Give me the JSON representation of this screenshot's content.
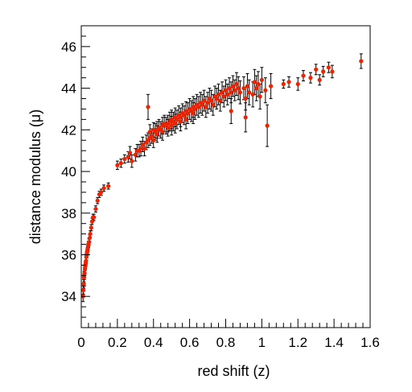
{
  "chart_data": {
    "type": "scatter",
    "title": "",
    "xlabel": "red shift (z)",
    "ylabel": "distance modulus (μ)",
    "xlim": [
      0,
      1.6
    ],
    "ylim": [
      32.5,
      47
    ],
    "xticks": [
      0,
      0.2,
      0.4,
      0.6,
      0.8,
      1,
      1.2,
      1.4,
      1.6
    ],
    "xtick_labels": [
      "0",
      "0.2",
      "0.4",
      "0.6",
      "0.8",
      "1",
      "1.2",
      "1.4",
      "1.6"
    ],
    "yticks": [
      34,
      36,
      38,
      40,
      42,
      44,
      46
    ],
    "ytick_labels": [
      "34",
      "36",
      "38",
      "40",
      "42",
      "44",
      "46"
    ],
    "grid": false,
    "legend": "none",
    "marker_color": "#ee2200",
    "errorbar_color": "#000000",
    "series": [
      {
        "x": [
          0.01,
          0.012,
          0.014,
          0.015,
          0.016,
          0.018,
          0.02,
          0.021,
          0.023,
          0.025,
          0.026,
          0.028,
          0.03,
          0.032,
          0.034,
          0.036,
          0.038,
          0.04,
          0.043,
          0.046,
          0.05,
          0.055,
          0.06,
          0.065,
          0.07,
          0.08,
          0.09,
          0.1,
          0.11,
          0.125,
          0.15,
          0.2,
          0.22,
          0.24,
          0.26,
          0.27,
          0.28,
          0.3,
          0.31,
          0.32,
          0.33,
          0.34,
          0.35,
          0.36,
          0.37,
          0.38,
          0.38,
          0.39,
          0.4,
          0.4,
          0.41,
          0.42,
          0.42,
          0.43,
          0.44,
          0.45,
          0.45,
          0.46,
          0.47,
          0.48,
          0.48,
          0.49,
          0.5,
          0.5,
          0.51,
          0.52,
          0.52,
          0.53,
          0.54,
          0.55,
          0.55,
          0.56,
          0.57,
          0.58,
          0.58,
          0.59,
          0.6,
          0.61,
          0.62,
          0.62,
          0.63,
          0.64,
          0.65,
          0.66,
          0.67,
          0.68,
          0.69,
          0.7,
          0.71,
          0.72,
          0.73,
          0.74,
          0.75,
          0.76,
          0.77,
          0.78,
          0.79,
          0.8,
          0.81,
          0.82,
          0.83,
          0.84,
          0.85,
          0.86,
          0.87,
          0.88,
          0.9,
          0.91,
          0.92,
          0.93,
          0.95,
          0.96,
          0.97,
          0.98,
          0.99,
          1.0,
          1.02,
          1.05,
          1.12,
          1.15,
          1.2,
          1.23,
          1.27,
          1.3,
          1.32,
          1.34,
          1.37,
          1.39,
          1.55,
          0.37,
          0.83,
          0.91,
          1.03
        ],
        "y": [
          34.0,
          34.3,
          34.6,
          34.9,
          35.0,
          35.1,
          35.3,
          35.4,
          35.5,
          35.6,
          35.7,
          35.9,
          36.0,
          36.1,
          36.2,
          36.3,
          36.4,
          36.5,
          36.6,
          36.8,
          37.0,
          37.3,
          37.6,
          37.8,
          37.8,
          38.2,
          38.6,
          38.9,
          39.0,
          39.2,
          39.3,
          40.3,
          40.4,
          40.6,
          40.7,
          40.9,
          40.5,
          40.8,
          41.0,
          41.0,
          41.1,
          41.3,
          41.1,
          41.4,
          41.5,
          41.6,
          41.9,
          41.7,
          41.5,
          42.0,
          41.9,
          42.0,
          41.8,
          42.1,
          42.0,
          42.2,
          41.9,
          42.3,
          42.2,
          42.3,
          42.1,
          42.4,
          42.2,
          42.5,
          42.4,
          42.6,
          42.3,
          42.5,
          42.7,
          42.6,
          42.4,
          42.8,
          42.7,
          42.9,
          42.5,
          42.8,
          43.0,
          42.9,
          43.1,
          42.8,
          43.0,
          43.2,
          43.1,
          43.3,
          43.2,
          43.4,
          43.1,
          43.3,
          43.5,
          43.4,
          43.2,
          43.6,
          43.5,
          43.7,
          43.4,
          43.8,
          43.6,
          43.9,
          43.7,
          44.0,
          43.8,
          44.1,
          43.9,
          44.2,
          44.0,
          43.8,
          44.0,
          43.5,
          44.1,
          43.8,
          43.7,
          44.3,
          44.0,
          44.2,
          43.6,
          44.4,
          43.9,
          44.1,
          44.2,
          44.3,
          44.2,
          44.6,
          44.5,
          44.9,
          44.4,
          44.8,
          45.0,
          44.8,
          45.3,
          43.1,
          42.9,
          42.6,
          42.2
        ],
        "yerr": [
          0.25,
          0.2,
          0.2,
          0.2,
          0.2,
          0.2,
          0.15,
          0.15,
          0.15,
          0.15,
          0.15,
          0.15,
          0.15,
          0.15,
          0.15,
          0.15,
          0.15,
          0.15,
          0.15,
          0.15,
          0.15,
          0.15,
          0.15,
          0.15,
          0.15,
          0.15,
          0.15,
          0.15,
          0.15,
          0.15,
          0.15,
          0.2,
          0.2,
          0.2,
          0.25,
          0.3,
          0.3,
          0.3,
          0.3,
          0.3,
          0.35,
          0.35,
          0.35,
          0.35,
          0.35,
          0.35,
          0.35,
          0.35,
          0.35,
          0.35,
          0.4,
          0.4,
          0.4,
          0.4,
          0.4,
          0.4,
          0.4,
          0.4,
          0.4,
          0.4,
          0.4,
          0.45,
          0.45,
          0.45,
          0.45,
          0.45,
          0.45,
          0.45,
          0.45,
          0.45,
          0.45,
          0.45,
          0.45,
          0.45,
          0.45,
          0.5,
          0.5,
          0.5,
          0.5,
          0.5,
          0.5,
          0.5,
          0.5,
          0.5,
          0.5,
          0.5,
          0.5,
          0.5,
          0.5,
          0.5,
          0.5,
          0.5,
          0.5,
          0.5,
          0.5,
          0.5,
          0.5,
          0.5,
          0.5,
          0.5,
          0.5,
          0.5,
          0.5,
          0.55,
          0.55,
          0.55,
          0.55,
          0.55,
          0.6,
          0.6,
          0.6,
          0.6,
          0.6,
          0.6,
          0.6,
          0.6,
          0.6,
          0.6,
          0.2,
          0.25,
          0.3,
          0.25,
          0.25,
          0.25,
          0.25,
          0.25,
          0.25,
          0.3,
          0.35,
          0.6,
          0.6,
          0.7,
          1.0
        ]
      }
    ]
  }
}
